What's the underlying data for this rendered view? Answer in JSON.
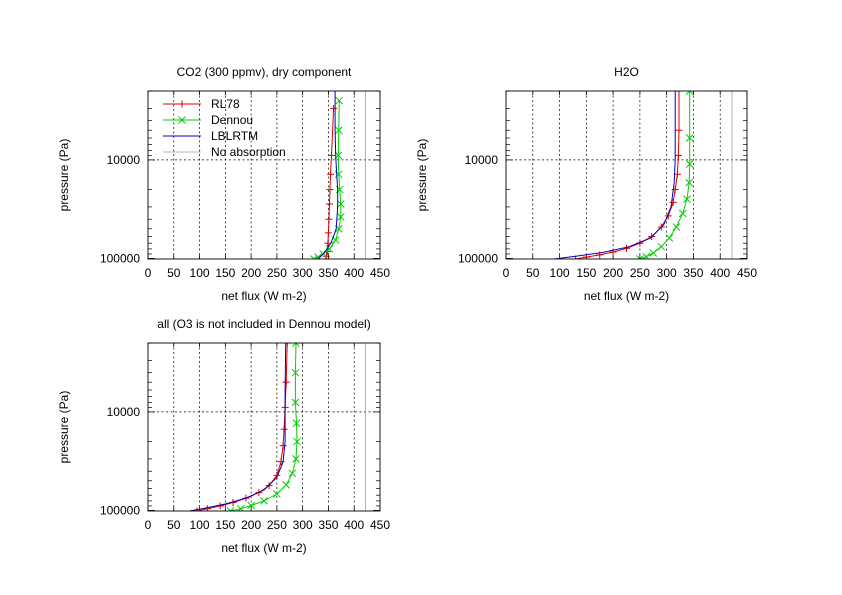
{
  "chart_data": [
    {
      "type": "line",
      "title": "CO2 (300 ppmv), dry component",
      "xlabel": "net flux (W m-2)",
      "ylabel": "pressure (Pa)",
      "xlim": [
        0,
        450
      ],
      "ylim": [
        101300,
        2000
      ],
      "y_scale": "log",
      "y_reversed": true,
      "xticks": [
        "0",
        "50",
        "100",
        "150",
        "200",
        "250",
        "300",
        "350",
        "400",
        "450"
      ],
      "yticks": [
        "10000",
        "100000"
      ],
      "grid": true,
      "legend": true,
      "legend_position": "top-left",
      "series": [
        {
          "name": "RL78",
          "color": "#e00000",
          "marker": "plus",
          "x": [
            345,
            346,
            348,
            349,
            350,
            351,
            352,
            353,
            354,
            356,
            360
          ],
          "y": [
            101300,
            95000,
            85000,
            70000,
            55000,
            40000,
            28000,
            20000,
            14000,
            9000,
            3000
          ]
        },
        {
          "name": "Dennou",
          "color": "#00d000",
          "marker": "x",
          "x": [
            322,
            330,
            340,
            352,
            364,
            370,
            374,
            374,
            372,
            370,
            369,
            370,
            371
          ],
          "y": [
            101300,
            97000,
            90000,
            80000,
            65000,
            50000,
            38000,
            28000,
            20000,
            14000,
            9000,
            5000,
            2500
          ]
        },
        {
          "name": "LBLRTM",
          "color": "#0000c0",
          "marker": "none",
          "x": [
            330,
            340,
            355,
            365,
            368,
            368,
            366,
            364,
            363,
            363
          ],
          "y": [
            101300,
            90000,
            70000,
            50000,
            30000,
            20000,
            14000,
            9000,
            5000,
            2000
          ]
        },
        {
          "name": "No absorption",
          "color": "#a0a0a0",
          "marker": "none",
          "x": [
            422,
            422
          ],
          "y": [
            101300,
            2000
          ]
        }
      ]
    },
    {
      "type": "line",
      "title": "H2O",
      "xlabel": "net flux (W m-2)",
      "ylabel": "pressure (Pa)",
      "xlim": [
        0,
        450
      ],
      "ylim": [
        101300,
        2000
      ],
      "y_scale": "log",
      "y_reversed": true,
      "xticks": [
        "0",
        "50",
        "100",
        "150",
        "200",
        "250",
        "300",
        "350",
        "400",
        "450"
      ],
      "yticks": [
        "10000",
        "100000"
      ],
      "grid": true,
      "legend": false,
      "series": [
        {
          "name": "RL78",
          "color": "#e00000",
          "marker": "plus",
          "x": [
            130,
            150,
            175,
            200,
            225,
            250,
            272,
            290,
            303,
            312,
            316,
            320,
            322,
            323,
            323
          ],
          "y": [
            101300,
            97000,
            92000,
            86000,
            79000,
            70000,
            60000,
            48000,
            37000,
            27000,
            20000,
            14000,
            9000,
            5000,
            2000
          ]
        },
        {
          "name": "Dennou",
          "color": "#00d000",
          "marker": "x",
          "x": [
            250,
            262,
            275,
            290,
            305,
            318,
            330,
            338,
            342,
            343,
            343,
            343
          ],
          "y": [
            101300,
            96000,
            88000,
            76000,
            62000,
            48000,
            35000,
            25000,
            17000,
            11000,
            6000,
            2000
          ]
        },
        {
          "name": "LBLRTM",
          "color": "#0000c0",
          "marker": "none",
          "x": [
            90,
            130,
            180,
            230,
            270,
            295,
            308,
            314,
            316,
            316,
            316
          ],
          "y": [
            101300,
            95000,
            87000,
            76000,
            62000,
            45000,
            30000,
            17000,
            10000,
            5000,
            2000
          ]
        },
        {
          "name": "No absorption",
          "color": "#a0a0a0",
          "marker": "none",
          "x": [
            422,
            422
          ],
          "y": [
            101300,
            2000
          ]
        }
      ]
    },
    {
      "type": "line",
      "title": "all (O3 is not included in Dennou model)",
      "xlabel": "net flux (W m-2)",
      "ylabel": "pressure (Pa)",
      "xlim": [
        0,
        450
      ],
      "ylim": [
        101300,
        2000
      ],
      "y_scale": "log",
      "y_reversed": true,
      "xticks": [
        "0",
        "50",
        "100",
        "150",
        "200",
        "250",
        "300",
        "350",
        "400",
        "450"
      ],
      "yticks": [
        "10000",
        "100000"
      ],
      "grid": true,
      "legend": false,
      "series": [
        {
          "name": "RL78",
          "color": "#e00000",
          "marker": "plus",
          "x": [
            95,
            115,
            140,
            165,
            190,
            215,
            235,
            250,
            258,
            262,
            264,
            266,
            268,
            270
          ],
          "y": [
            101300,
            96000,
            90000,
            83000,
            75000,
            66000,
            56000,
            44000,
            32000,
            22000,
            15000,
            9000,
            5000,
            2000
          ]
        },
        {
          "name": "Dennou",
          "color": "#00d000",
          "marker": "x",
          "x": [
            160,
            180,
            200,
            225,
            250,
            268,
            280,
            287,
            289,
            288,
            286,
            286,
            287
          ],
          "y": [
            101300,
            96000,
            89000,
            80000,
            68000,
            55000,
            42000,
            30000,
            20000,
            13000,
            8000,
            4000,
            2000
          ]
        },
        {
          "name": "LBLRTM",
          "color": "#0000c0",
          "marker": "none",
          "x": [
            80,
            110,
            150,
            190,
            225,
            250,
            262,
            266,
            266,
            266,
            267
          ],
          "y": [
            101300,
            95000,
            86000,
            75000,
            62000,
            46000,
            32000,
            20000,
            12000,
            6000,
            2000
          ]
        },
        {
          "name": "No absorption",
          "color": "#a0a0a0",
          "marker": "none",
          "x": [
            422,
            422
          ],
          "y": [
            101300,
            2000
          ]
        }
      ]
    }
  ]
}
